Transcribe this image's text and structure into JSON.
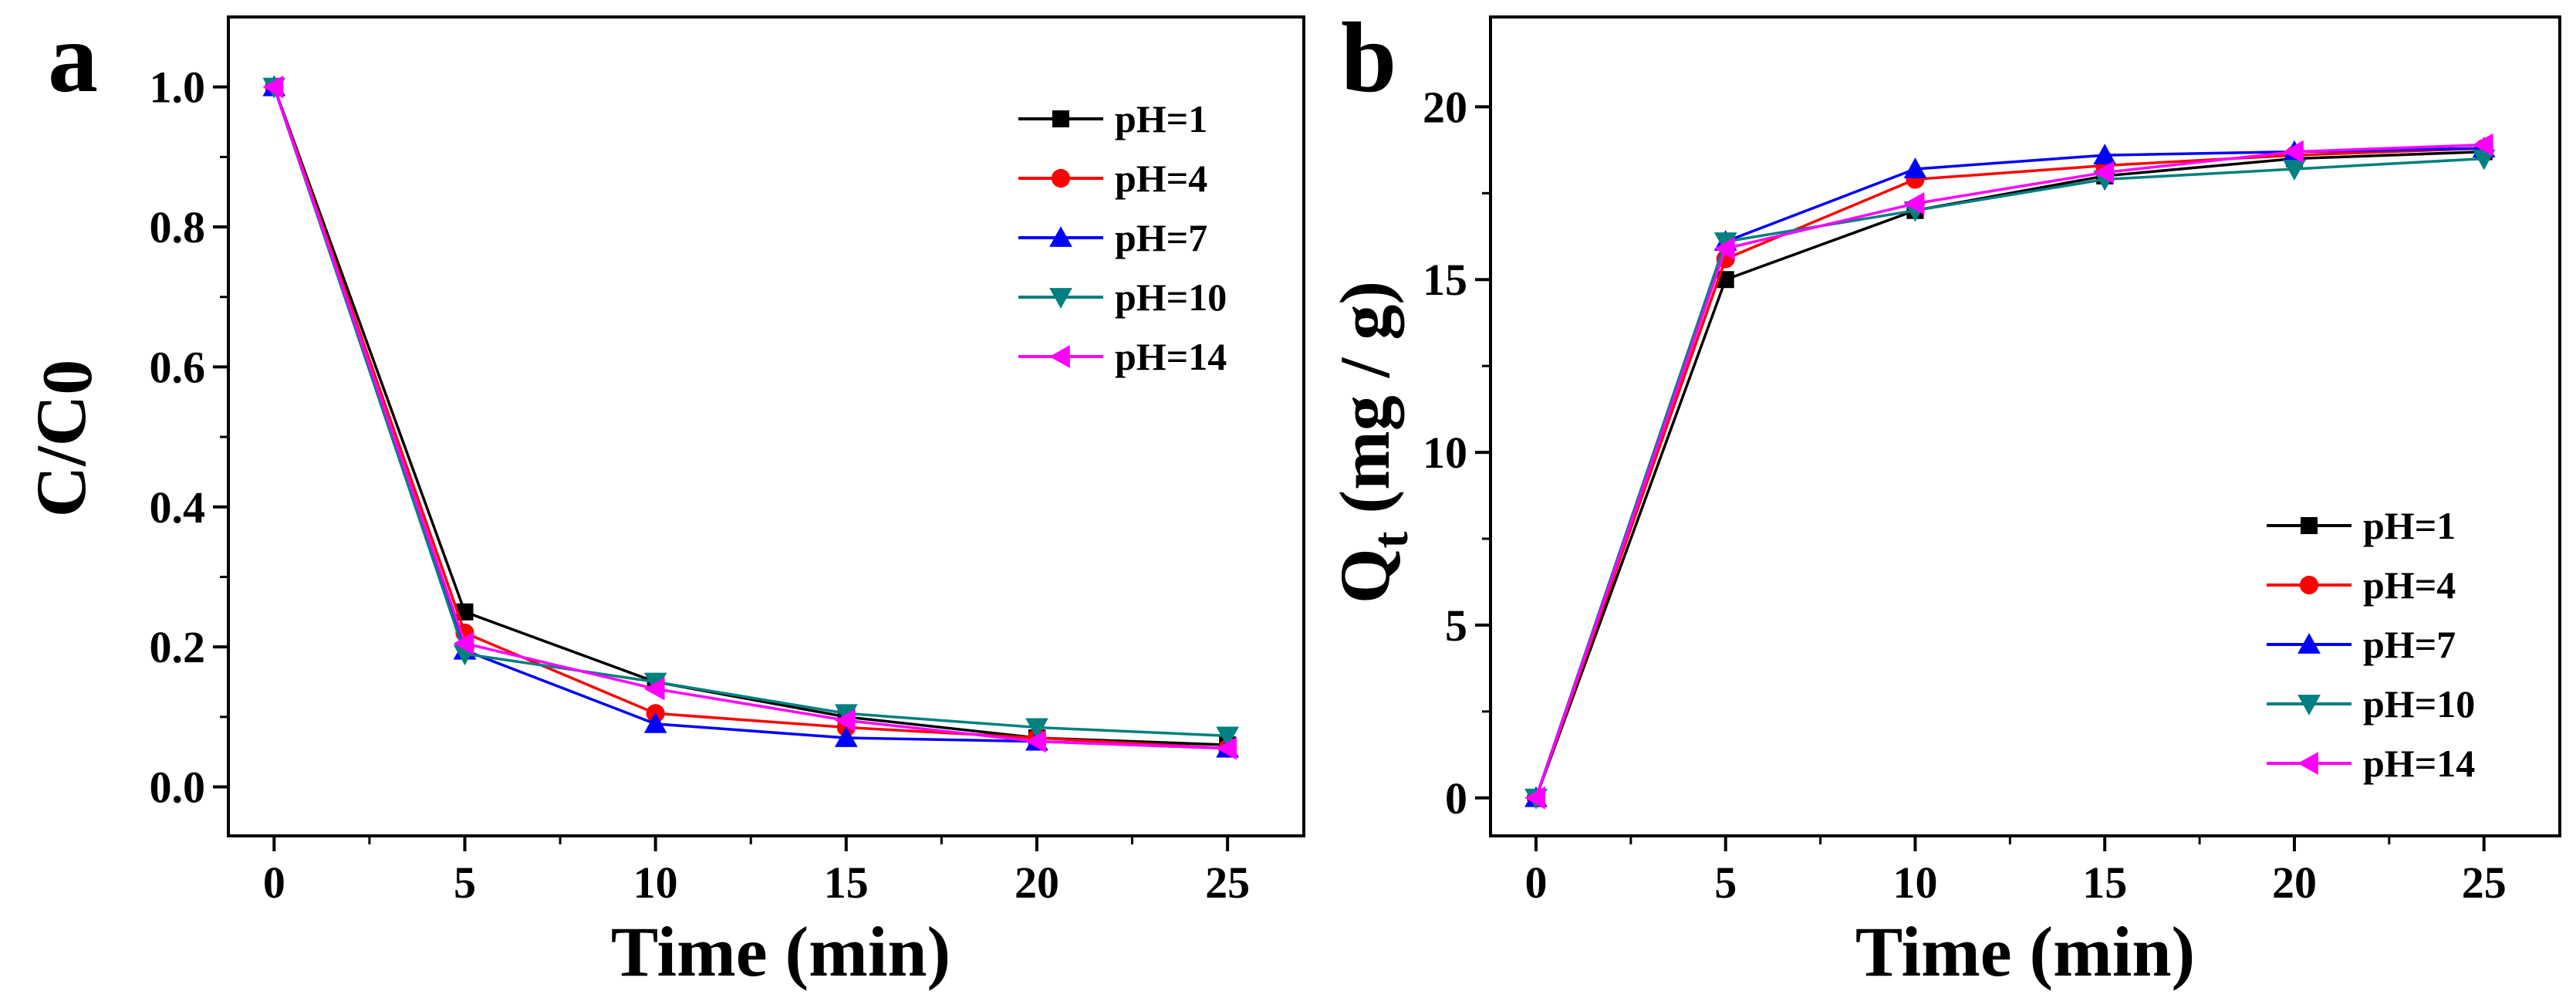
{
  "figure": {
    "charts": [
      {
        "panel_label": "a",
        "xlabel": "Time (min)",
        "ylabel": "C/C",
        "ylabel_sub": "0"
      },
      {
        "panel_label": "b",
        "xlabel": "Time (min)",
        "ylabel_pre": "Q",
        "ylabel_sub": "t",
        "ylabel_post": " (mg / g)"
      }
    ]
  },
  "chart_data": [
    {
      "type": "line",
      "panel_label": "a",
      "xlabel": "Time (min)",
      "ylabel": "C/C0",
      "x": [
        0,
        5,
        10,
        15,
        20,
        25
      ],
      "xlim": [
        -1.2,
        27
      ],
      "ylim": [
        -0.07,
        1.1
      ],
      "xticks": [
        0,
        5,
        10,
        15,
        20,
        25
      ],
      "xtick_labels": [
        "0",
        "5",
        "10",
        "15",
        "20",
        "25"
      ],
      "yticks": [
        0.0,
        0.2,
        0.4,
        0.6,
        0.8,
        1.0
      ],
      "ytick_labels": [
        "0.0",
        "0.2",
        "0.4",
        "0.6",
        "0.8",
        "1.0"
      ],
      "minor_xticks": [
        2.5,
        7.5,
        12.5,
        17.5,
        22.5
      ],
      "minor_yticks": [
        0.1,
        0.3,
        0.5,
        0.7,
        0.9
      ],
      "legend_position": "top-right",
      "grid": false,
      "series": [
        {
          "name": "pH=1",
          "color": "#000000",
          "marker": "square",
          "values": [
            1.0,
            0.25,
            0.15,
            0.1,
            0.07,
            0.06
          ]
        },
        {
          "name": "pH=4",
          "color": "#ff0000",
          "marker": "circle",
          "values": [
            1.0,
            0.22,
            0.105,
            0.085,
            0.07,
            0.055
          ]
        },
        {
          "name": "pH=7",
          "color": "#0000ff",
          "marker": "triangle-up",
          "values": [
            1.0,
            0.195,
            0.09,
            0.07,
            0.065,
            0.055
          ]
        },
        {
          "name": "pH=10",
          "color": "#008080",
          "marker": "triangle-down",
          "values": [
            1.0,
            0.19,
            0.15,
            0.105,
            0.085,
            0.073
          ]
        },
        {
          "name": "pH=14",
          "color": "#ff00ff",
          "marker": "triangle-left",
          "values": [
            1.0,
            0.205,
            0.14,
            0.095,
            0.065,
            0.055
          ]
        }
      ]
    },
    {
      "type": "line",
      "panel_label": "b",
      "xlabel": "Time (min)",
      "ylabel": "Qt (mg / g)",
      "x": [
        0,
        5,
        10,
        15,
        20,
        25
      ],
      "xlim": [
        -1.2,
        27
      ],
      "ylim": [
        -1.1,
        22.6
      ],
      "xticks": [
        0,
        5,
        10,
        15,
        20,
        25
      ],
      "xtick_labels": [
        "0",
        "5",
        "10",
        "15",
        "20",
        "25"
      ],
      "yticks": [
        0,
        5,
        10,
        15,
        20
      ],
      "ytick_labels": [
        "0",
        "5",
        "10",
        "15",
        "20"
      ],
      "minor_xticks": [
        2.5,
        7.5,
        12.5,
        17.5,
        22.5
      ],
      "minor_yticks": [
        2.5,
        7.5,
        12.5,
        17.5
      ],
      "legend_position": "bottom-right",
      "grid": false,
      "series": [
        {
          "name": "pH=1",
          "color": "#000000",
          "marker": "square",
          "values": [
            0,
            15.0,
            17.0,
            18.0,
            18.5,
            18.7
          ]
        },
        {
          "name": "pH=4",
          "color": "#ff0000",
          "marker": "circle",
          "values": [
            0,
            15.6,
            17.9,
            18.3,
            18.6,
            18.8
          ]
        },
        {
          "name": "pH=7",
          "color": "#0000ff",
          "marker": "triangle-up",
          "values": [
            0,
            16.1,
            18.2,
            18.6,
            18.7,
            18.8
          ]
        },
        {
          "name": "pH=10",
          "color": "#008080",
          "marker": "triangle-down",
          "values": [
            0,
            16.1,
            17.0,
            17.9,
            18.2,
            18.5
          ]
        },
        {
          "name": "pH=14",
          "color": "#ff00ff",
          "marker": "triangle-left",
          "values": [
            0,
            15.9,
            17.2,
            18.1,
            18.7,
            18.9
          ]
        }
      ]
    }
  ]
}
